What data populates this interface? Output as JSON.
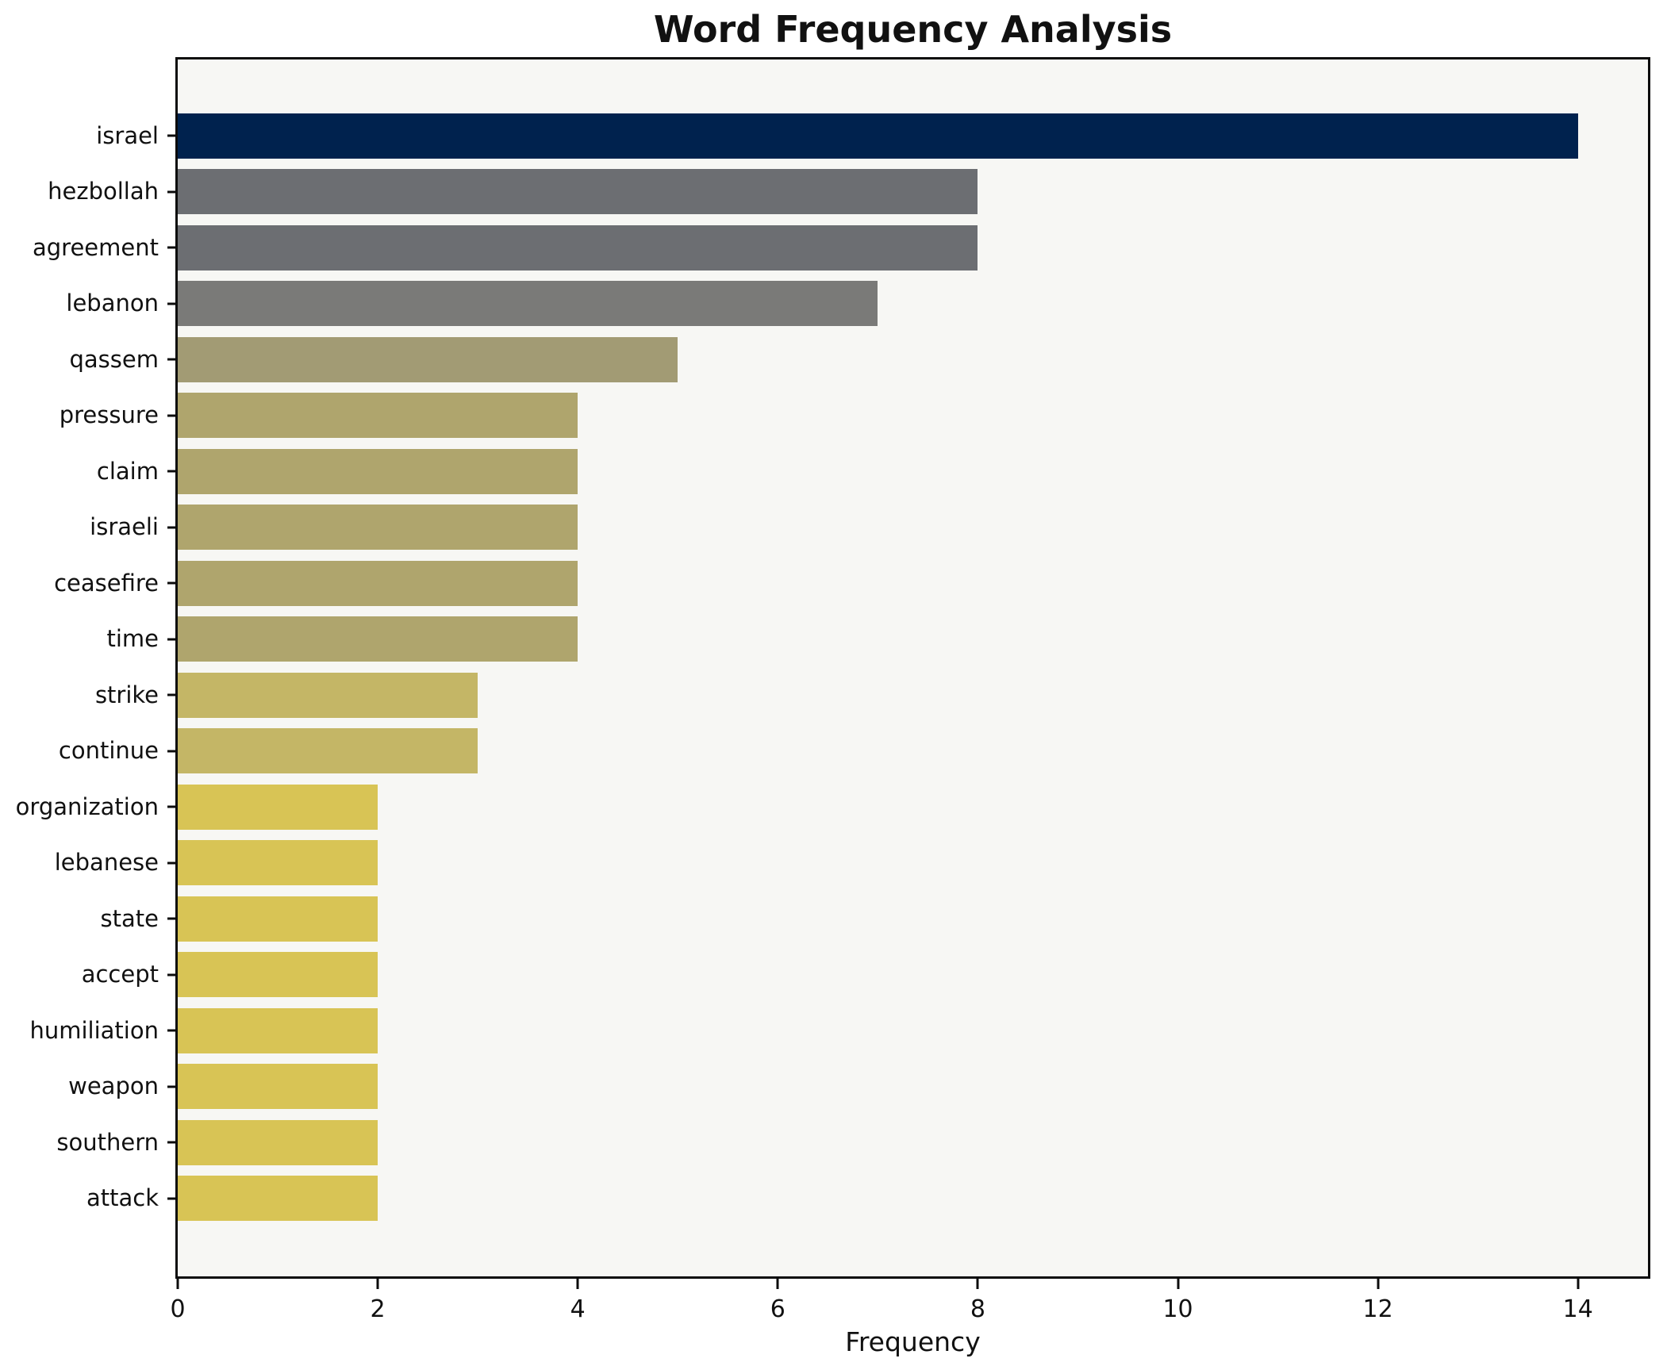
{
  "chart_data": {
    "type": "bar",
    "orientation": "horizontal",
    "title": "Word Frequency Analysis",
    "xlabel": "Frequency",
    "ylabel": "",
    "categories": [
      "israel",
      "hezbollah",
      "agreement",
      "lebanon",
      "qassem",
      "pressure",
      "claim",
      "israeli",
      "ceasefire",
      "time",
      "strike",
      "continue",
      "organization",
      "lebanese",
      "state",
      "accept",
      "humiliation",
      "weapon",
      "southern",
      "attack"
    ],
    "values": [
      14,
      8,
      8,
      7,
      5,
      4,
      4,
      4,
      4,
      4,
      3,
      3,
      2,
      2,
      2,
      2,
      2,
      2,
      2,
      2
    ],
    "bar_colors": [
      "#00224e",
      "#6c6e72",
      "#6c6e72",
      "#7a7a78",
      "#a29b74",
      "#afa56d",
      "#afa56d",
      "#afa56d",
      "#afa56d",
      "#afa56d",
      "#c4b666",
      "#c4b666",
      "#d8c455",
      "#d8c455",
      "#d8c455",
      "#d8c455",
      "#d8c455",
      "#d8c455",
      "#d8c455",
      "#d8c455"
    ],
    "xlim": [
      0,
      14.7
    ],
    "xticks": [
      0,
      2,
      4,
      6,
      8,
      10,
      12,
      14
    ],
    "grid": false,
    "legend": null,
    "plot_background": "#f7f7f4",
    "figure_background": "#ffffff",
    "axis_color": "#0c0c0c",
    "text_color": "#111111"
  }
}
